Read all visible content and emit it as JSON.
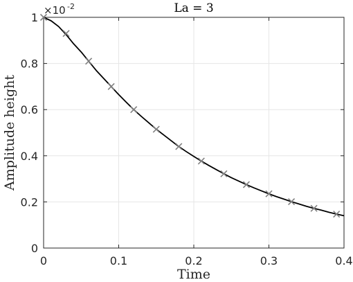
{
  "chart_data": {
    "type": "line",
    "title": "La = 3",
    "xlabel": "Time",
    "ylabel": "Amplitude height",
    "exponent_label": {
      "base": "×10",
      "power": "-2"
    },
    "xlim": [
      0,
      0.4
    ],
    "ylim": [
      0,
      1
    ],
    "x_ticks": [
      0,
      0.1,
      0.2,
      0.3,
      0.4
    ],
    "x_tick_labels": [
      "0",
      "0.1",
      "0.2",
      "0.3",
      "0.4"
    ],
    "y_ticks": [
      0,
      0.2,
      0.4,
      0.6,
      0.8,
      1
    ],
    "y_tick_labels": [
      "0",
      "0.2",
      "0.4",
      "0.6",
      "0.8",
      "1"
    ],
    "grid": true,
    "series": [
      {
        "style": "solid-line",
        "color": "#000000",
        "x": [
          0,
          0.01,
          0.02,
          0.03,
          0.04,
          0.05,
          0.06,
          0.07,
          0.08,
          0.09,
          0.1,
          0.11,
          0.12,
          0.13,
          0.14,
          0.15,
          0.16,
          0.17,
          0.18,
          0.19,
          0.2,
          0.21,
          0.22,
          0.23,
          0.24,
          0.25,
          0.26,
          0.27,
          0.28,
          0.29,
          0.3,
          0.31,
          0.32,
          0.33,
          0.34,
          0.35,
          0.36,
          0.37,
          0.38,
          0.39,
          0.4
        ],
        "y": [
          1.0,
          0.985,
          0.96,
          0.925,
          0.885,
          0.85,
          0.81,
          0.77,
          0.735,
          0.7,
          0.665,
          0.632,
          0.6,
          0.571,
          0.543,
          0.515,
          0.49,
          0.465,
          0.44,
          0.418,
          0.397,
          0.377,
          0.358,
          0.34,
          0.322,
          0.305,
          0.29,
          0.275,
          0.261,
          0.248,
          0.235,
          0.223,
          0.212,
          0.201,
          0.191,
          0.181,
          0.172,
          0.164,
          0.155,
          0.147,
          0.14
        ]
      },
      {
        "style": "x-markers",
        "color": "#808080",
        "x": [
          0,
          0.03,
          0.06,
          0.09,
          0.12,
          0.15,
          0.18,
          0.21,
          0.24,
          0.27,
          0.3,
          0.33,
          0.36,
          0.39
        ],
        "y": [
          1.0,
          0.93,
          0.81,
          0.7,
          0.6,
          0.515,
          0.44,
          0.377,
          0.322,
          0.275,
          0.235,
          0.201,
          0.172,
          0.147
        ]
      }
    ]
  }
}
